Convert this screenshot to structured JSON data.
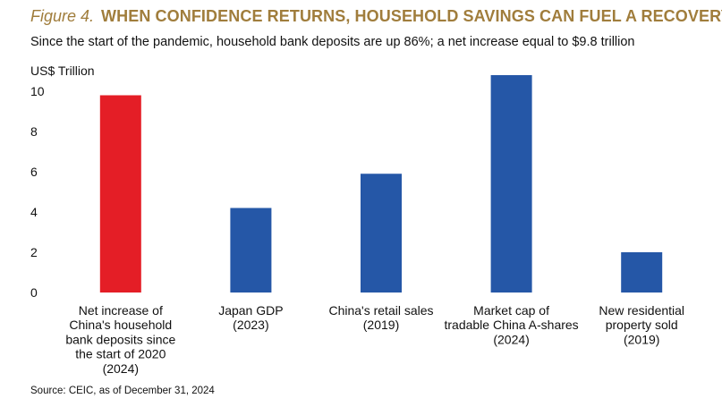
{
  "header": {
    "figure_number": "Figure 4.",
    "title": "WHEN CONFIDENCE RETURNS, HOUSEHOLD SAVINGS CAN FUEL A RECOVERY",
    "subtitle": "Since the start of the pandemic, household bank deposits are up 86%; a net increase equal to $9.8 trillion"
  },
  "source": "Source: CEIC, as of December 31, 2024",
  "colors": {
    "title": "#a07d3c",
    "highlight_bar": "#e41e26",
    "bar": "#2557a7"
  },
  "chart_data": {
    "type": "bar",
    "title": "WHEN CONFIDENCE RETURNS, HOUSEHOLD SAVINGS CAN FUEL A RECOVERY",
    "ylabel": "US$ Trillion",
    "xlabel": "",
    "ylim": [
      0,
      10
    ],
    "yticks": [
      "0",
      "2",
      "4",
      "6",
      "8",
      "10"
    ],
    "grid": false,
    "categories": [
      [
        "Net increase of",
        "China's household",
        "bank deposits since",
        "the start of 2020",
        "(2024)"
      ],
      [
        "Japan GDP",
        "(2023)"
      ],
      [
        "China's retail sales",
        "(2019)"
      ],
      [
        "Market cap of",
        "tradable China A-shares",
        "(2024)"
      ],
      [
        "New residential",
        "property sold",
        "(2019)"
      ]
    ],
    "values": [
      9.8,
      4.2,
      5.9,
      10.8,
      2.0
    ],
    "bar_colors": [
      "#e41e26",
      "#2557a7",
      "#2557a7",
      "#2557a7",
      "#2557a7"
    ]
  }
}
